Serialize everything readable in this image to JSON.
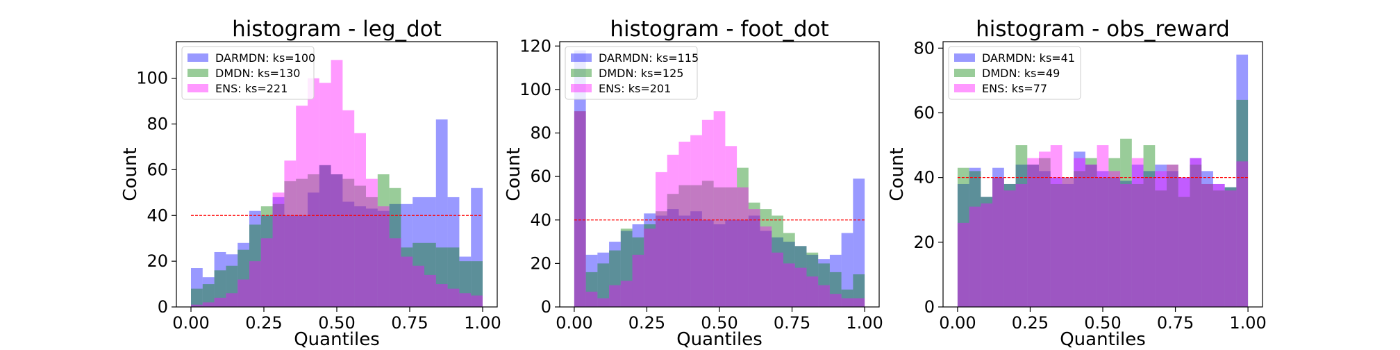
{
  "chart_data": [
    {
      "type": "bar",
      "title": "histogram - leg_dot",
      "xlabel": "Quantiles",
      "ylabel": "Count",
      "xlim": [
        -0.05,
        1.05
      ],
      "ylim": [
        0,
        116
      ],
      "xticks": [
        "0.00",
        "0.25",
        "0.50",
        "0.75",
        "1.00"
      ],
      "yticks": [
        "0",
        "20",
        "40",
        "60",
        "80",
        "100"
      ],
      "reference_line": 40,
      "legend": "top-left",
      "bins": 25,
      "series": [
        {
          "name": "DARMDN: ks=100",
          "color": "#0000ff",
          "values": [
            17,
            13,
            24,
            23,
            28,
            42,
            40,
            48,
            40,
            40,
            50,
            62,
            58,
            46,
            44,
            43,
            42,
            45,
            45,
            48,
            48,
            82,
            48,
            22,
            52
          ]
        },
        {
          "name": "DMDN: ks=130",
          "color": "#008000",
          "values": [
            8,
            10,
            16,
            18,
            25,
            36,
            44,
            45,
            55,
            56,
            58,
            62,
            58,
            56,
            53,
            48,
            58,
            52,
            26,
            28,
            28,
            26,
            26,
            20,
            20
          ]
        },
        {
          "name": "ENS: ks=221",
          "color": "#ff00ff",
          "values": [
            1,
            2,
            4,
            6,
            12,
            20,
            30,
            50,
            64,
            88,
            100,
            98,
            108,
            86,
            76,
            56,
            44,
            30,
            22,
            18,
            14,
            10,
            8,
            6,
            5
          ]
        }
      ]
    },
    {
      "type": "bar",
      "title": "histogram - foot_dot",
      "xlabel": "Quantiles",
      "ylabel": "Count",
      "xlim": [
        -0.05,
        1.05
      ],
      "ylim": [
        0,
        122
      ],
      "xticks": [
        "0.00",
        "0.25",
        "0.50",
        "0.75",
        "1.00"
      ],
      "yticks": [
        "0",
        "20",
        "40",
        "60",
        "80",
        "100",
        "120"
      ],
      "reference_line": 40,
      "legend": "top-left",
      "bins": 25,
      "series": [
        {
          "name": "DARMDN: ks=115",
          "color": "#0000ff",
          "values": [
            118,
            24,
            25,
            30,
            35,
            38,
            43,
            42,
            45,
            42,
            44,
            40,
            38,
            40,
            40,
            42,
            35,
            32,
            30,
            28,
            24,
            22,
            24,
            34,
            59
          ]
        },
        {
          "name": "DMDN: ks=125",
          "color": "#008000",
          "values": [
            90,
            16,
            20,
            26,
            36,
            32,
            38,
            44,
            52,
            56,
            56,
            58,
            55,
            55,
            64,
            48,
            45,
            42,
            34,
            28,
            25,
            20,
            16,
            8,
            15
          ]
        },
        {
          "name": "ENS: ks=201",
          "color": "#ff00ff",
          "values": [
            90,
            7,
            4,
            10,
            12,
            24,
            36,
            62,
            70,
            76,
            79,
            86,
            90,
            74,
            55,
            45,
            37,
            25,
            20,
            18,
            14,
            10,
            6,
            4,
            4
          ]
        }
      ]
    },
    {
      "type": "bar",
      "title": "histogram - obs_reward",
      "xlabel": "Quantiles",
      "ylabel": "Count",
      "xlim": [
        -0.05,
        1.05
      ],
      "ylim": [
        0,
        82
      ],
      "xticks": [
        "0.00",
        "0.25",
        "0.50",
        "0.75",
        "1.00"
      ],
      "yticks": [
        "0",
        "20",
        "40",
        "60",
        "80"
      ],
      "reference_line": 40,
      "legend": "top-left",
      "bins": 25,
      "series": [
        {
          "name": "DARMDN: ks=41",
          "color": "#0000ff",
          "values": [
            38,
            43,
            34,
            43,
            38,
            44,
            44,
            42,
            40,
            38,
            48,
            44,
            42,
            40,
            39,
            44,
            42,
            44,
            42,
            40,
            46,
            42,
            38,
            37,
            78
          ]
        },
        {
          "name": "DMDN: ks=49",
          "color": "#008000",
          "values": [
            43,
            42,
            34,
            40,
            38,
            50,
            44,
            46,
            38,
            40,
            42,
            46,
            40,
            46,
            52,
            38,
            50,
            36,
            44,
            34,
            44,
            38,
            36,
            37,
            64
          ]
        },
        {
          "name": "ENS: ks=77",
          "color": "#ff00ff",
          "values": [
            26,
            31,
            32,
            40,
            36,
            38,
            46,
            48,
            50,
            40,
            46,
            44,
            50,
            42,
            38,
            46,
            40,
            42,
            44,
            40,
            46,
            38,
            38,
            36,
            45
          ]
        }
      ]
    }
  ]
}
